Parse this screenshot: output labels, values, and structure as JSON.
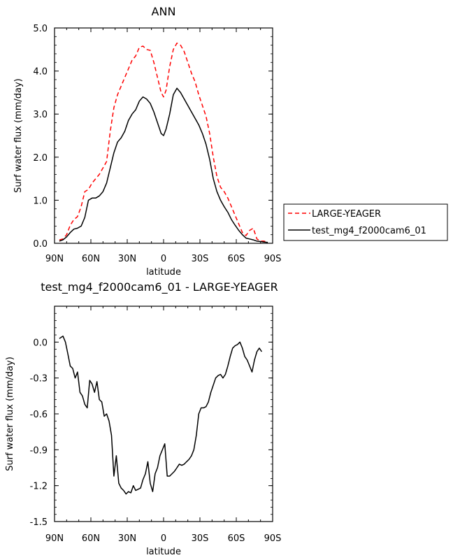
{
  "chart_data": [
    {
      "type": "line",
      "title": "ANN",
      "xlabel": "latitude",
      "ylabel": "Surf water flux (mm/day)",
      "xlim": [
        90,
        -90
      ],
      "ylim": [
        0,
        5
      ],
      "xticks": [
        90,
        60,
        30,
        0,
        -30,
        -60,
        -90
      ],
      "xtick_labels": [
        "90N",
        "60N",
        "30N",
        "0",
        "30S",
        "60S",
        "90S"
      ],
      "yticks": [
        0,
        1,
        2,
        3,
        4,
        5
      ],
      "ytick_labels": [
        "0.0",
        "1.0",
        "2.0",
        "3.0",
        "4.0",
        "5.0"
      ],
      "legend_position": "right",
      "series": [
        {
          "name": "LARGE-YEAGER",
          "color": "#ff0000",
          "dash": "dashed",
          "x": [
            86,
            83,
            80,
            77,
            74,
            71,
            68,
            65,
            62,
            59,
            56,
            53,
            50,
            47,
            44,
            41,
            38,
            35,
            32,
            29,
            26,
            23,
            20,
            17,
            14,
            11,
            8,
            5,
            2,
            0,
            -2,
            -5,
            -8,
            -11,
            -14,
            -17,
            -20,
            -23,
            -26,
            -29,
            -32,
            -35,
            -38,
            -41,
            -44,
            -47,
            -50,
            -53,
            -56,
            -59,
            -62,
            -65,
            -68,
            -71,
            -74,
            -77,
            -80,
            -83,
            -86
          ],
          "y": [
            0.08,
            0.1,
            0.2,
            0.42,
            0.55,
            0.62,
            0.85,
            1.2,
            1.25,
            1.4,
            1.5,
            1.6,
            1.75,
            1.9,
            2.6,
            3.15,
            3.45,
            3.65,
            3.85,
            4.05,
            4.25,
            4.35,
            4.55,
            4.58,
            4.5,
            4.48,
            4.2,
            3.85,
            3.5,
            3.4,
            3.55,
            4.1,
            4.5,
            4.65,
            4.6,
            4.45,
            4.2,
            3.95,
            3.75,
            3.45,
            3.2,
            2.95,
            2.55,
            2.0,
            1.55,
            1.3,
            1.2,
            1.05,
            0.85,
            0.65,
            0.45,
            0.25,
            0.18,
            0.3,
            0.35,
            0.1,
            0.05,
            0.05,
            0.02
          ]
        },
        {
          "name": "test_mg4_f2000cam6_01",
          "color": "#000000",
          "dash": "solid",
          "x": [
            86,
            83,
            80,
            77,
            74,
            71,
            68,
            65,
            62,
            59,
            56,
            53,
            50,
            47,
            44,
            41,
            38,
            35,
            32,
            29,
            26,
            23,
            20,
            17,
            14,
            11,
            8,
            5,
            2,
            0,
            -2,
            -5,
            -8,
            -11,
            -14,
            -17,
            -20,
            -23,
            -26,
            -29,
            -32,
            -35,
            -38,
            -41,
            -44,
            -47,
            -50,
            -53,
            -56,
            -59,
            -62,
            -65,
            -68,
            -71,
            -74,
            -77,
            -80,
            -83,
            -86
          ],
          "y": [
            0.05,
            0.08,
            0.15,
            0.25,
            0.33,
            0.35,
            0.4,
            0.6,
            1.0,
            1.05,
            1.05,
            1.1,
            1.2,
            1.4,
            1.75,
            2.1,
            2.35,
            2.45,
            2.6,
            2.85,
            3.0,
            3.1,
            3.3,
            3.4,
            3.35,
            3.25,
            3.05,
            2.8,
            2.55,
            2.5,
            2.65,
            3.0,
            3.45,
            3.6,
            3.5,
            3.35,
            3.2,
            3.05,
            2.9,
            2.75,
            2.55,
            2.3,
            1.95,
            1.5,
            1.2,
            1.0,
            0.85,
            0.72,
            0.55,
            0.42,
            0.3,
            0.2,
            0.12,
            0.1,
            0.08,
            0.05,
            0.04,
            0.03,
            0.02
          ]
        }
      ]
    },
    {
      "type": "line",
      "title": "test_mg4_f2000cam6_01 - LARGE-YEAGER",
      "xlabel": "latitude",
      "ylabel": "Surf water flux (mm/day)",
      "xlim": [
        90,
        -90
      ],
      "ylim": [
        -1.5,
        0.3
      ],
      "xticks": [
        90,
        60,
        30,
        0,
        -30,
        -60,
        -90
      ],
      "xtick_labels": [
        "90N",
        "60N",
        "30N",
        "0",
        "30S",
        "60S",
        "90S"
      ],
      "yticks": [
        -1.5,
        -1.2,
        -0.9,
        -0.6,
        -0.3,
        0.0
      ],
      "ytick_labels": [
        "-1.5",
        "-1.2",
        "-0.9",
        "-0.6",
        "-0.3",
        "0.0"
      ],
      "series": [
        {
          "name": "",
          "color": "#000000",
          "dash": "solid",
          "x": [
            86,
            83,
            81,
            79,
            77,
            75,
            73,
            71,
            69,
            67,
            65,
            63,
            61,
            59,
            57,
            55,
            53,
            51,
            49,
            47,
            45,
            43,
            41,
            39,
            37,
            35,
            33,
            31,
            29,
            27,
            25,
            23,
            21,
            19,
            17,
            15,
            13,
            11,
            9,
            7,
            5,
            3,
            1,
            -1,
            -3,
            -5,
            -7,
            -9,
            -11,
            -13,
            -15,
            -17,
            -19,
            -21,
            -23,
            -25,
            -27,
            -29,
            -31,
            -33,
            -35,
            -37,
            -39,
            -41,
            -43,
            -45,
            -47,
            -49,
            -51,
            -53,
            -55,
            -57,
            -59,
            -61,
            -63,
            -65,
            -67,
            -69,
            -71,
            -73,
            -75,
            -77,
            -79,
            -81
          ],
          "y": [
            0.03,
            0.05,
            0.0,
            -0.1,
            -0.2,
            -0.22,
            -0.3,
            -0.25,
            -0.42,
            -0.45,
            -0.52,
            -0.55,
            -0.32,
            -0.35,
            -0.42,
            -0.33,
            -0.48,
            -0.5,
            -0.62,
            -0.6,
            -0.66,
            -0.78,
            -1.12,
            -0.95,
            -1.18,
            -1.22,
            -1.24,
            -1.27,
            -1.25,
            -1.26,
            -1.2,
            -1.24,
            -1.23,
            -1.22,
            -1.15,
            -1.1,
            -1.0,
            -1.18,
            -1.25,
            -1.1,
            -1.05,
            -0.95,
            -0.9,
            -0.85,
            -1.12,
            -1.12,
            -1.1,
            -1.08,
            -1.05,
            -1.02,
            -1.03,
            -1.02,
            -1.0,
            -0.98,
            -0.95,
            -0.9,
            -0.78,
            -0.6,
            -0.55,
            -0.55,
            -0.54,
            -0.5,
            -0.42,
            -0.36,
            -0.3,
            -0.28,
            -0.27,
            -0.3,
            -0.27,
            -0.2,
            -0.12,
            -0.05,
            -0.03,
            -0.02,
            0.0,
            -0.05,
            -0.12,
            -0.15,
            -0.2,
            -0.25,
            -0.15,
            -0.08,
            -0.05,
            -0.08
          ]
        }
      ]
    }
  ]
}
